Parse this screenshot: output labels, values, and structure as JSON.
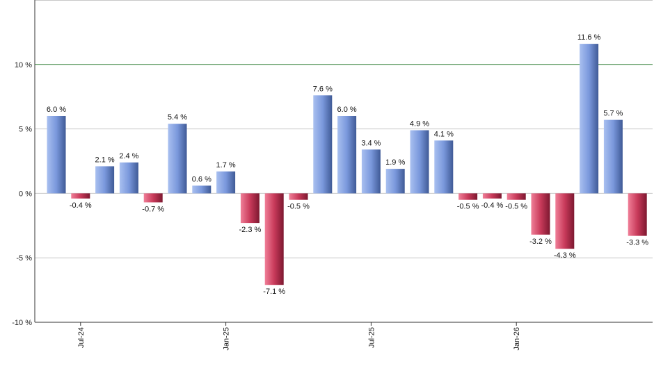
{
  "chart_data": {
    "type": "bar",
    "title": "",
    "xlabel": "",
    "ylabel": "",
    "ylim": [
      -10,
      15
    ],
    "y_ticks": [
      -10,
      -5,
      0,
      5,
      10
    ],
    "y_tick_format": "{v} %",
    "reference_line": {
      "value": 10,
      "color": "#2e7d32"
    },
    "grid": true,
    "values": [
      6.0,
      -0.4,
      2.1,
      2.4,
      -0.7,
      5.4,
      0.6,
      1.7,
      -2.3,
      -7.1,
      -0.5,
      7.6,
      6.0,
      3.4,
      1.9,
      4.9,
      4.1,
      -0.5,
      -0.4,
      -0.5,
      -3.2,
      -4.3,
      11.6,
      5.7,
      -3.3
    ],
    "value_labels": [
      "6.0 %",
      "-0.4 %",
      "2.1 %",
      "2.4 %",
      "-0.7 %",
      "5.4 %",
      "0.6 %",
      "1.7 %",
      "-2.3 %",
      "-7.1 %",
      "-0.5 %",
      "7.6 %",
      "6.0 %",
      "3.4 %",
      "1.9 %",
      "4.9 %",
      "4.1 %",
      "-0.5 %",
      "-0.4 %",
      "-0.5 %",
      "-3.2 %",
      "-4.3 %",
      "11.6 %",
      "5.7 %",
      "-3.3 %"
    ],
    "x_ticks": [
      {
        "label": "Jul-24",
        "index": 1
      },
      {
        "label": "Jan-25",
        "index": 7
      },
      {
        "label": "Jul-25",
        "index": 13
      },
      {
        "label": "Jan-26",
        "index": 19
      }
    ],
    "colors": {
      "positive": "#6f8fd6",
      "negative": "#c0304f",
      "reference": "#2e7d32",
      "grid": "#c8c8c8"
    }
  }
}
